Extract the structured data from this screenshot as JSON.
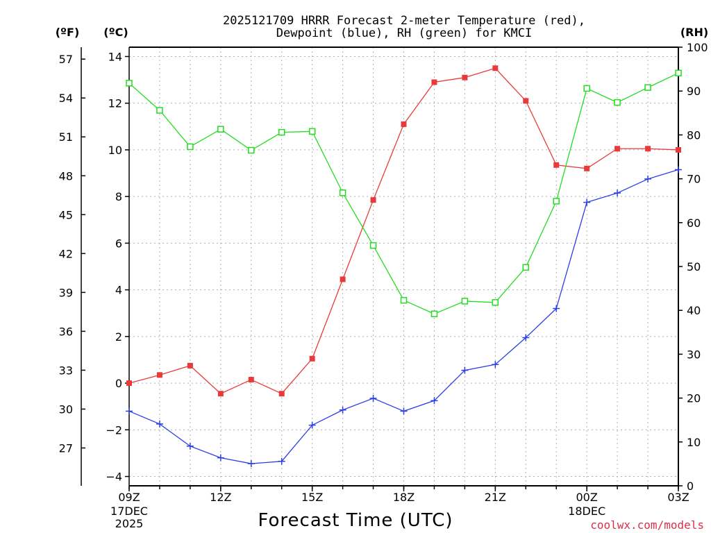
{
  "chart_data": {
    "type": "line",
    "title_line1": "2025121709 HRRR Forecast 2-meter Temperature (red),",
    "title_line2": "Dewpoint (blue), RH (green) for KMCI",
    "unit_f": "(ºF)",
    "unit_c": "(ºC)",
    "unit_rh": "(RH)",
    "xlabel": "Forecast Time (UTC)",
    "credit": "coolwx.com/models",
    "x": [
      0,
      1,
      2,
      3,
      4,
      5,
      6,
      7,
      8,
      9,
      10,
      11,
      12,
      13,
      14,
      15,
      16,
      17,
      18
    ],
    "xlim": [
      0,
      18
    ],
    "ylim_c": [
      -4.4,
      14.4
    ],
    "ylim_rh": [
      0,
      100
    ],
    "x_ticks": [
      {
        "x": 0,
        "label": "09Z",
        "date": "17DEC",
        "year": "2025"
      },
      {
        "x": 3,
        "label": "12Z"
      },
      {
        "x": 6,
        "label": "15Z"
      },
      {
        "x": 9,
        "label": "18Z"
      },
      {
        "x": 12,
        "label": "21Z"
      },
      {
        "x": 15,
        "label": "00Z",
        "date": "18DEC"
      },
      {
        "x": 18,
        "label": "03Z"
      }
    ],
    "y_ticks_c": [
      -4,
      -2,
      0,
      2,
      4,
      6,
      8,
      10,
      12,
      14
    ],
    "y_tick_labels_c": [
      "−4",
      "−2",
      "0",
      "2",
      "4",
      "6",
      "8",
      "10",
      "12",
      "14"
    ],
    "y_ticks_f": [
      27,
      30,
      33,
      36,
      39,
      42,
      45,
      48,
      51,
      54,
      57
    ],
    "y_ticks_rh": [
      0,
      10,
      20,
      30,
      40,
      50,
      60,
      70,
      80,
      90,
      100
    ],
    "series": [
      {
        "name": "Temperature",
        "unit": "C",
        "color": "#e83a3a",
        "marker": "filled-square",
        "values": [
          0.0,
          0.35,
          0.75,
          -0.45,
          0.15,
          -0.45,
          1.05,
          4.45,
          7.85,
          11.1,
          12.9,
          13.1,
          13.5,
          12.1,
          9.35,
          9.2,
          10.05,
          10.05,
          10.0
        ]
      },
      {
        "name": "Dewpoint",
        "unit": "C",
        "color": "#2a3ee8",
        "marker": "plus",
        "values": [
          -1.2,
          -1.75,
          -2.7,
          -3.2,
          -3.45,
          -3.35,
          -1.8,
          -1.15,
          -0.65,
          -1.2,
          -0.75,
          0.55,
          0.8,
          1.95,
          3.2,
          7.75,
          8.15,
          8.75,
          9.15
        ]
      },
      {
        "name": "RH",
        "unit": "%",
        "color": "#22dd22",
        "marker": "open-square",
        "values": [
          91.8,
          85.6,
          77.3,
          81.3,
          76.5,
          80.6,
          80.8,
          66.8,
          54.8,
          42.3,
          39.2,
          42.1,
          41.8,
          49.8,
          64.9,
          90.6,
          87.4,
          90.8,
          94.1
        ]
      }
    ]
  }
}
